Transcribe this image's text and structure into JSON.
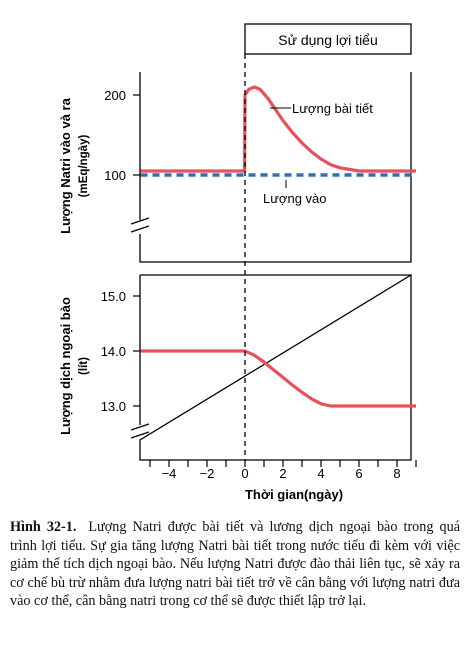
{
  "banner_label": "Sử dụng lợi tiểu",
  "xlabel": "Thời gian(ngày)",
  "caption": {
    "label": "Hình 32-1.",
    "text": "Lượng Natri được bài tiết và lương dịch ngoại bào trong quá trình lợi tiểu. Sự gia tăng lượng Natri bài tiết trong nước tiểu đi kèm với việc giảm thể tích dịch ngoại bào. Nếu lượng Natri được đào thải liên tục, sẽ xảy ra cơ chế bù trừ nhằm đưa lượng natri bài tiết trở về cân bằng với lượng natri đưa vào cơ thể, cân bằng natri trong cơ thể sẽ được thiết lập trở lại."
  },
  "colors": {
    "excreted": "#e8505b",
    "intake": "#2f6fb0",
    "axis": "#000000"
  },
  "chart_data": [
    {
      "type": "line",
      "ylabel": "Lượng Natri vào và ra",
      "ylabel_unit": "(mEq/ngày)",
      "yticks": [
        100,
        200
      ],
      "ylim": [
        40,
        235
      ],
      "axis_break": true,
      "series": [
        {
          "name": "Lượng bài tiết",
          "style": "solid",
          "x": [
            -5.5,
            -4,
            -2,
            -0.02,
            0,
            0.2,
            0.5,
            0.8,
            1.2,
            1.6,
            2,
            2.5,
            3,
            3.5,
            4,
            4.5,
            5,
            6,
            7,
            8,
            9
          ],
          "y": [
            105,
            105,
            105,
            105,
            200,
            207,
            210,
            207,
            196,
            182,
            168,
            153,
            140,
            129,
            120,
            113,
            109,
            105,
            105,
            105,
            105
          ]
        },
        {
          "name": "Lượng vào",
          "style": "dashed",
          "x": [
            -5.5,
            9
          ],
          "y": [
            100,
            100
          ]
        }
      ]
    },
    {
      "type": "line",
      "ylabel": "Lượng dịch ngoại bào",
      "ylabel_unit": "(lít)",
      "yticks": [
        13.0,
        14.0,
        15.0
      ],
      "ylim": [
        12.5,
        15.2
      ],
      "axis_break": true,
      "xlabel": "Thời gian(ngày)",
      "xticks": [
        -4,
        -2,
        0,
        2,
        4,
        6,
        8
      ],
      "xlim": [
        -5.5,
        9.2
      ],
      "series": [
        {
          "name": "",
          "style": "solid",
          "x": [
            -5.5,
            -4,
            -2,
            0,
            0.5,
            1,
            1.5,
            2,
            2.5,
            3,
            3.5,
            4,
            4.5,
            5,
            6,
            7,
            8,
            9
          ],
          "y": [
            14.0,
            14.0,
            14.0,
            14.0,
            13.92,
            13.8,
            13.66,
            13.52,
            13.38,
            13.25,
            13.13,
            13.04,
            13.0,
            13.0,
            13.0,
            13.0,
            13.0,
            13.0
          ]
        }
      ]
    }
  ]
}
